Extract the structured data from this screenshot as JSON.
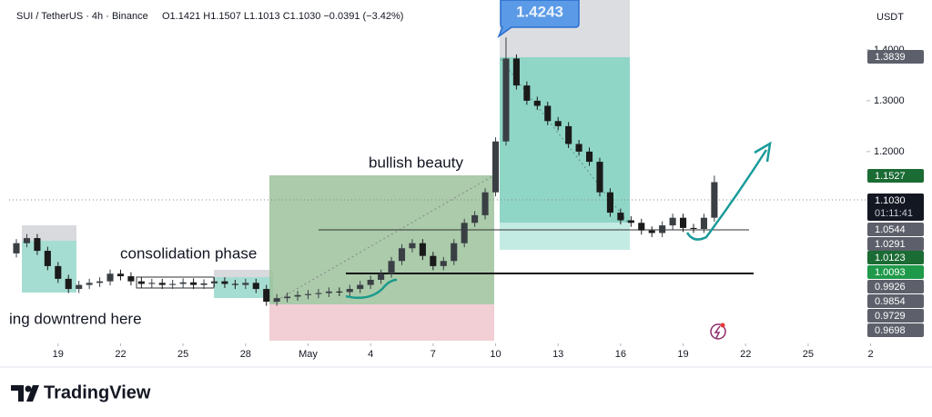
{
  "chart_data": {
    "type": "candlestick",
    "title": "SUI / TetherUS · 4h · Binance",
    "subtitle": "O1.1421 H1.1507 L1.1013 C1.1030 −0.0391 (−3.42%)",
    "currency": "USDT",
    "peak_label": "1.4243",
    "annotations": [
      "bullish beauty",
      "consolidation phase",
      "ing downtrend here"
    ],
    "brand": "TradingView",
    "up_color": "#3a3f44",
    "down_color": "#1a1a1a",
    "open": [
      1.0,
      1.02,
      1.03,
      1.005,
      0.975,
      0.95,
      0.93,
      0.938,
      0.942,
      0.945,
      0.96,
      0.955,
      0.945,
      0.94,
      0.942,
      0.938,
      0.94,
      0.943,
      0.938,
      0.941,
      0.945,
      0.94,
      0.938,
      0.942,
      0.93,
      0.905,
      0.912,
      0.915,
      0.918,
      0.92,
      0.922,
      0.925,
      0.924,
      0.93,
      0.938,
      0.948,
      0.96,
      0.985,
      1.01,
      1.02,
      0.995,
      0.975,
      0.985,
      1.02,
      1.06,
      1.075,
      1.12,
      1.22,
      1.383,
      1.33,
      1.3,
      1.29,
      1.26,
      1.25,
      1.215,
      1.2,
      1.18,
      1.12,
      1.08,
      1.065,
      1.06,
      1.045,
      1.04,
      1.055,
      1.07,
      1.05,
      1.048,
      1.07
    ],
    "high": [
      1.028,
      1.038,
      1.038,
      1.013,
      0.983,
      0.958,
      0.946,
      0.95,
      0.953,
      0.968,
      0.968,
      0.963,
      0.953,
      0.95,
      0.95,
      0.948,
      0.951,
      0.951,
      0.949,
      0.953,
      0.953,
      0.948,
      0.95,
      0.95,
      0.938,
      0.92,
      0.923,
      0.926,
      0.928,
      0.93,
      0.933,
      0.933,
      0.938,
      0.946,
      0.956,
      0.968,
      0.993,
      1.018,
      1.028,
      1.028,
      1.003,
      0.993,
      1.028,
      1.068,
      1.083,
      1.128,
      1.228,
      1.4243,
      1.391,
      1.338,
      1.308,
      1.298,
      1.268,
      1.258,
      1.223,
      1.208,
      1.188,
      1.128,
      1.088,
      1.073,
      1.068,
      1.053,
      1.063,
      1.078,
      1.078,
      1.058,
      1.078,
      1.1527
    ],
    "low": [
      0.992,
      1.012,
      0.997,
      0.967,
      0.942,
      0.922,
      0.922,
      0.93,
      0.934,
      0.937,
      0.947,
      0.937,
      0.932,
      0.932,
      0.93,
      0.93,
      0.932,
      0.93,
      0.93,
      0.933,
      0.932,
      0.93,
      0.93,
      0.922,
      0.897,
      0.897,
      0.904,
      0.907,
      0.91,
      0.912,
      0.914,
      0.916,
      0.916,
      0.922,
      0.93,
      0.94,
      0.952,
      0.977,
      1.002,
      0.987,
      0.967,
      0.967,
      0.977,
      1.012,
      1.052,
      1.067,
      1.112,
      1.212,
      1.322,
      1.292,
      1.282,
      1.252,
      1.242,
      1.207,
      1.192,
      1.172,
      1.112,
      1.072,
      1.057,
      1.052,
      1.037,
      1.032,
      1.032,
      1.047,
      1.042,
      1.04,
      1.04,
      1.062
    ],
    "close": [
      1.02,
      1.03,
      1.005,
      0.975,
      0.95,
      0.93,
      0.938,
      0.942,
      0.945,
      0.96,
      0.955,
      0.945,
      0.94,
      0.942,
      0.938,
      0.94,
      0.943,
      0.938,
      0.941,
      0.945,
      0.94,
      0.938,
      0.942,
      0.93,
      0.905,
      0.912,
      0.915,
      0.918,
      0.92,
      0.922,
      0.925,
      0.924,
      0.93,
      0.938,
      0.948,
      0.96,
      0.985,
      1.01,
      1.02,
      0.995,
      0.975,
      0.985,
      1.02,
      1.06,
      1.075,
      1.12,
      1.22,
      1.383,
      1.33,
      1.3,
      1.29,
      1.26,
      1.25,
      1.215,
      1.2,
      1.18,
      1.12,
      1.08,
      1.065,
      1.06,
      1.045,
      1.04,
      1.055,
      1.07,
      1.05,
      1.048,
      1.07,
      1.14
    ],
    "xlim": [
      -0.7,
      82.3
    ],
    "xticks": [
      {
        "value": 4,
        "label": "19"
      },
      {
        "value": 10,
        "label": "22"
      },
      {
        "value": 16,
        "label": "25"
      },
      {
        "value": 22,
        "label": "28"
      },
      {
        "value": 28,
        "label": "May"
      },
      {
        "value": 34,
        "label": "4"
      },
      {
        "value": 40,
        "label": "7"
      },
      {
        "value": 46,
        "label": "10"
      },
      {
        "value": 52,
        "label": "13"
      },
      {
        "value": 58,
        "label": "16"
      },
      {
        "value": 64,
        "label": "19"
      },
      {
        "value": 70,
        "label": "22"
      },
      {
        "value": 76,
        "label": "25"
      },
      {
        "value": 82,
        "label": "2"
      }
    ],
    "ylim": [
      0.823,
      1.498
    ],
    "yticks": [
      {
        "value": 1.4,
        "label": "1.4000"
      },
      {
        "value": 1.3,
        "label": "1.3000"
      },
      {
        "value": 1.2,
        "label": "1.2000"
      }
    ],
    "grid": false,
    "price_tags": [
      {
        "label": "1.3839",
        "color": "#5d606b"
      },
      {
        "label": "1.1527",
        "color": "#1b6b34"
      },
      {
        "label": "1.1030",
        "color": "#131722",
        "sub": "01:11:41"
      },
      {
        "label": "1.0544",
        "color": "#5d606b"
      },
      {
        "label": "1.0291",
        "color": "#5d606b"
      },
      {
        "label": "1.0123",
        "color": "#1b6b34"
      },
      {
        "label": "1.0093",
        "color": "#1f9a4a"
      },
      {
        "label": "0.9926",
        "color": "#5d606b"
      },
      {
        "label": "0.9854",
        "color": "#5d606b"
      },
      {
        "label": "0.9729",
        "color": "#5d606b"
      },
      {
        "label": "0.9698",
        "color": "#5d606b"
      }
    ]
  }
}
